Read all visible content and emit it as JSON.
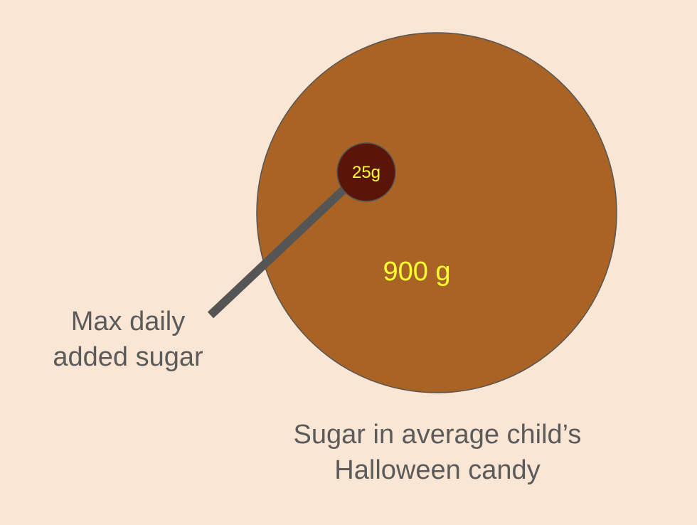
{
  "circles": {
    "large": {
      "value_label": "900 g",
      "value_grams": 900,
      "fill_color": "#a96324",
      "caption_lines": [
        "Sugar in average child’s",
        "Halloween candy"
      ]
    },
    "small": {
      "value_label": "25g",
      "value_grams": 25,
      "fill_color": "#5a1508",
      "caption_lines": [
        "Max daily",
        "added sugar"
      ]
    }
  },
  "colors": {
    "background": "#fae6d4",
    "value_text": "#ffff33",
    "caption_text": "#5b5b5b",
    "leader_line": "#555555",
    "circle_stroke": "#555555"
  }
}
